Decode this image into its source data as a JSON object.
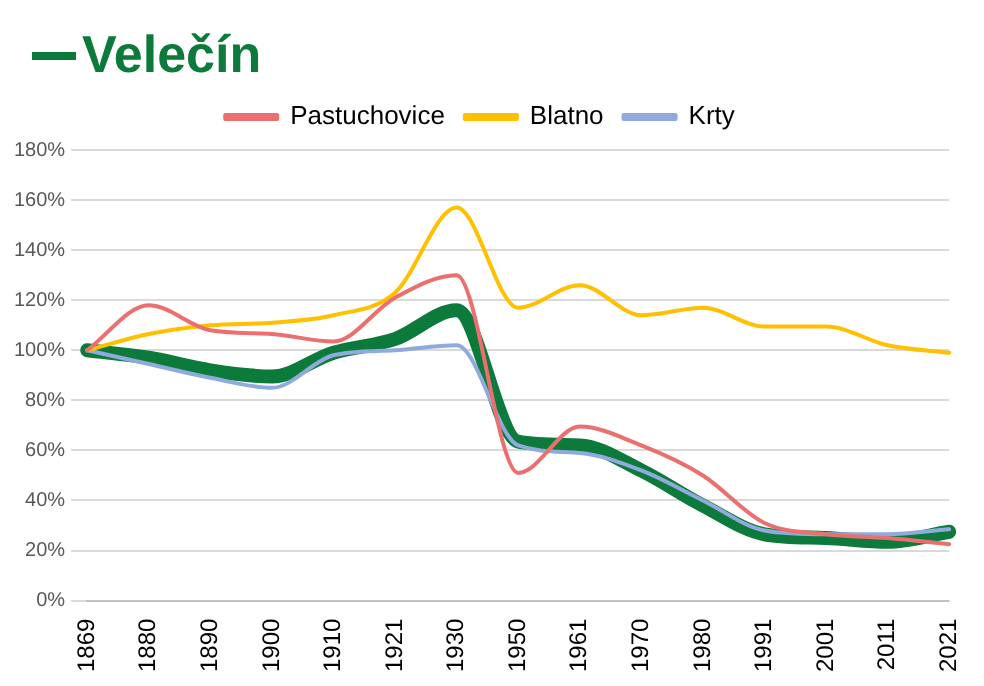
{
  "chart_data": {
    "type": "line",
    "categories": [
      "1869",
      "1880",
      "1890",
      "1900",
      "1910",
      "1921",
      "1930",
      "1950",
      "1961",
      "1970",
      "1980",
      "1991",
      "2001",
      "2011",
      "2021"
    ],
    "series": [
      {
        "name": "Velečín",
        "color": "#0b7a3b",
        "values": [
          100,
          97,
          92,
          89.5,
          99,
          104.5,
          116,
          63.5,
          62,
          52,
          38,
          26.5,
          25,
          23.5,
          27.5
        ]
      },
      {
        "name": "Pastuchovice",
        "color": "#ec6f6f",
        "values": [
          100,
          118,
          108,
          106.5,
          103.5,
          121,
          130,
          51,
          69.5,
          62,
          50,
          31,
          26.5,
          25,
          22.5
        ]
      },
      {
        "name": "Blatno",
        "color": "#ffc000",
        "values": [
          100,
          106.5,
          110,
          111,
          114,
          123,
          157,
          117,
          126,
          114,
          117,
          109.5,
          109.5,
          102,
          99
        ]
      },
      {
        "name": "Krty",
        "color": "#8faadc",
        "values": [
          100,
          94.5,
          89,
          85,
          98,
          100,
          102,
          62,
          59,
          52,
          40,
          28,
          26.5,
          26.5,
          28.5
        ]
      }
    ],
    "ylim": [
      0,
      180
    ],
    "yticks": [
      {
        "value": 0,
        "label": "0%"
      },
      {
        "value": 20,
        "label": "20%"
      },
      {
        "value": 40,
        "label": "40%"
      },
      {
        "value": 60,
        "label": "60%"
      },
      {
        "value": 80,
        "label": "80%"
      },
      {
        "value": 100,
        "label": "100%"
      },
      {
        "value": 120,
        "label": "120%"
      },
      {
        "value": 140,
        "label": "140%"
      },
      {
        "value": 160,
        "label": "160%"
      },
      {
        "value": 180,
        "label": "180%"
      }
    ],
    "grid": "y",
    "legend": "top",
    "marker": "none",
    "line_style": "solid"
  }
}
